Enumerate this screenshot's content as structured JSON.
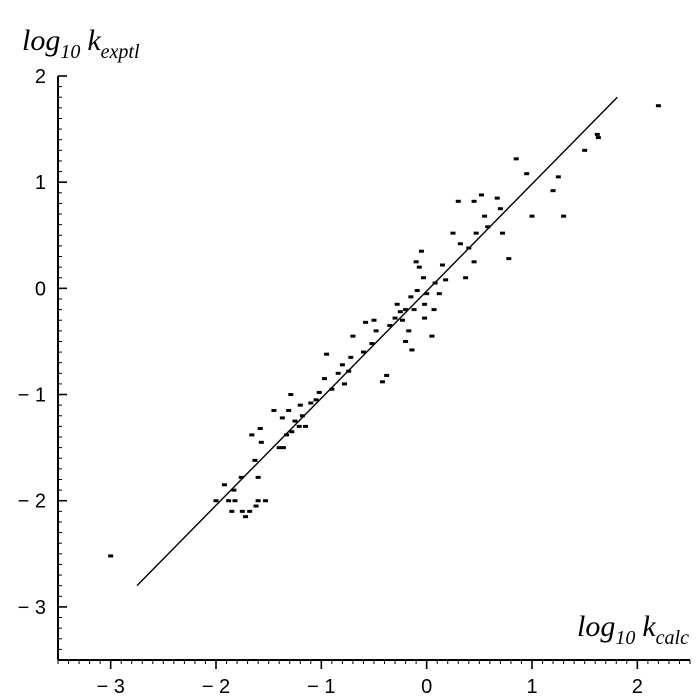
{
  "chart_data": {
    "type": "scatter",
    "title": "",
    "ylabel": {
      "base": "log",
      "sub": "10",
      "k": "k",
      "ksub": "exptl"
    },
    "xlabel": {
      "base": "log",
      "sub": "10",
      "k": "k",
      "ksub": "calc"
    },
    "xlim": [
      -3.5,
      2.5
    ],
    "ylim": [
      -3.5,
      2.0
    ],
    "x_ticks": [
      -3,
      -2,
      -1,
      0,
      1,
      2
    ],
    "x_tick_labels": [
      "− 3",
      "− 2",
      "− 1",
      "0",
      "1",
      "2"
    ],
    "y_ticks": [
      -3,
      -2,
      -1,
      0,
      1,
      2
    ],
    "y_tick_labels": [
      "− 3",
      "− 2",
      "− 1",
      "0",
      "1",
      "2"
    ],
    "grid": false,
    "fit_line": {
      "x": [
        -2.75,
        1.81
      ],
      "y": [
        -2.8,
        1.8
      ]
    },
    "points": [
      {
        "x": -3.0,
        "y": -2.52
      },
      {
        "x": -2.0,
        "y": -2.0
      },
      {
        "x": -1.92,
        "y": -1.85
      },
      {
        "x": -1.88,
        "y": -2.0
      },
      {
        "x": -1.85,
        "y": -2.1
      },
      {
        "x": -1.83,
        "y": -1.9
      },
      {
        "x": -1.82,
        "y": -2.0
      },
      {
        "x": -1.76,
        "y": -1.78
      },
      {
        "x": -1.75,
        "y": -2.1
      },
      {
        "x": -1.72,
        "y": -2.15
      },
      {
        "x": -1.68,
        "y": -2.1
      },
      {
        "x": -1.66,
        "y": -1.38
      },
      {
        "x": -1.63,
        "y": -1.62
      },
      {
        "x": -1.62,
        "y": -2.05
      },
      {
        "x": -1.6,
        "y": -1.78
      },
      {
        "x": -1.6,
        "y": -2.0
      },
      {
        "x": -1.58,
        "y": -1.32
      },
      {
        "x": -1.57,
        "y": -1.45
      },
      {
        "x": -1.53,
        "y": -2.0
      },
      {
        "x": -1.45,
        "y": -1.15
      },
      {
        "x": -1.4,
        "y": -1.5
      },
      {
        "x": -1.37,
        "y": -1.22
      },
      {
        "x": -1.36,
        "y": -1.5
      },
      {
        "x": -1.33,
        "y": -1.38
      },
      {
        "x": -1.31,
        "y": -1.15
      },
      {
        "x": -1.29,
        "y": -1.0
      },
      {
        "x": -1.28,
        "y": -1.35
      },
      {
        "x": -1.25,
        "y": -1.25
      },
      {
        "x": -1.21,
        "y": -1.3
      },
      {
        "x": -1.2,
        "y": -1.1
      },
      {
        "x": -1.18,
        "y": -1.2
      },
      {
        "x": -1.15,
        "y": -1.3
      },
      {
        "x": -1.1,
        "y": -1.08
      },
      {
        "x": -1.05,
        "y": -1.05
      },
      {
        "x": -1.02,
        "y": -0.98
      },
      {
        "x": -0.97,
        "y": -0.85
      },
      {
        "x": -0.95,
        "y": -0.62
      },
      {
        "x": -0.9,
        "y": -0.95
      },
      {
        "x": -0.84,
        "y": -0.8
      },
      {
        "x": -0.8,
        "y": -0.72
      },
      {
        "x": -0.78,
        "y": -0.9
      },
      {
        "x": -0.74,
        "y": -0.78
      },
      {
        "x": -0.72,
        "y": -0.65
      },
      {
        "x": -0.7,
        "y": -0.45
      },
      {
        "x": -0.6,
        "y": -0.6
      },
      {
        "x": -0.58,
        "y": -0.32
      },
      {
        "x": -0.52,
        "y": -0.52
      },
      {
        "x": -0.5,
        "y": -0.3
      },
      {
        "x": -0.48,
        "y": -0.4
      },
      {
        "x": -0.42,
        "y": -0.88
      },
      {
        "x": -0.38,
        "y": -0.82
      },
      {
        "x": -0.35,
        "y": -0.35
      },
      {
        "x": -0.3,
        "y": -0.28
      },
      {
        "x": -0.28,
        "y": -0.15
      },
      {
        "x": -0.25,
        "y": -0.22
      },
      {
        "x": -0.23,
        "y": -0.3
      },
      {
        "x": -0.2,
        "y": -0.2
      },
      {
        "x": -0.2,
        "y": -0.5
      },
      {
        "x": -0.17,
        "y": -0.4
      },
      {
        "x": -0.15,
        "y": -0.08
      },
      {
        "x": -0.14,
        "y": -0.58
      },
      {
        "x": -0.12,
        "y": -0.2
      },
      {
        "x": -0.1,
        "y": 0.25
      },
      {
        "x": -0.09,
        "y": -0.02
      },
      {
        "x": -0.07,
        "y": 0.2
      },
      {
        "x": -0.05,
        "y": 0.35
      },
      {
        "x": -0.03,
        "y": 0.1
      },
      {
        "x": -0.02,
        "y": -0.15
      },
      {
        "x": -0.02,
        "y": -0.28
      },
      {
        "x": 0.0,
        "y": -0.05
      },
      {
        "x": 0.05,
        "y": -0.45
      },
      {
        "x": 0.07,
        "y": -0.2
      },
      {
        "x": 0.08,
        "y": 0.05
      },
      {
        "x": 0.12,
        "y": -0.05
      },
      {
        "x": 0.15,
        "y": 0.22
      },
      {
        "x": 0.18,
        "y": 0.08
      },
      {
        "x": 0.25,
        "y": 0.52
      },
      {
        "x": 0.3,
        "y": 0.82
      },
      {
        "x": 0.32,
        "y": 0.42
      },
      {
        "x": 0.37,
        "y": 0.1
      },
      {
        "x": 0.4,
        "y": 0.38
      },
      {
        "x": 0.45,
        "y": 0.82
      },
      {
        "x": 0.45,
        "y": 0.25
      },
      {
        "x": 0.47,
        "y": 0.52
      },
      {
        "x": 0.52,
        "y": 0.88
      },
      {
        "x": 0.55,
        "y": 0.68
      },
      {
        "x": 0.58,
        "y": 0.58
      },
      {
        "x": 0.67,
        "y": 0.85
      },
      {
        "x": 0.7,
        "y": 0.75
      },
      {
        "x": 0.72,
        "y": 0.52
      },
      {
        "x": 0.78,
        "y": 0.28
      },
      {
        "x": 0.85,
        "y": 1.22
      },
      {
        "x": 0.95,
        "y": 1.08
      },
      {
        "x": 1.0,
        "y": 0.68
      },
      {
        "x": 1.2,
        "y": 0.92
      },
      {
        "x": 1.25,
        "y": 1.05
      },
      {
        "x": 1.3,
        "y": 0.68
      },
      {
        "x": 1.5,
        "y": 1.3
      },
      {
        "x": 1.62,
        "y": 1.45
      },
      {
        "x": 1.63,
        "y": 1.42
      },
      {
        "x": 2.2,
        "y": 1.72
      }
    ]
  }
}
